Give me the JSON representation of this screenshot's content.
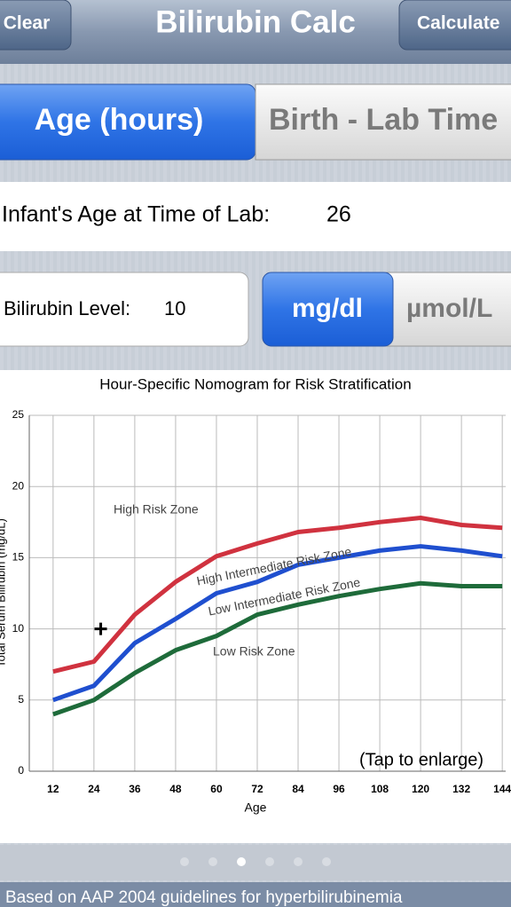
{
  "header": {
    "left_button": "Clear",
    "title": "Bilirubin Calc",
    "right_button": "Calculate"
  },
  "tabs": [
    "Age (hours)",
    "Birth - Lab Time"
  ],
  "age_field": {
    "label": "Infant's Age at Time of Lab:",
    "value": 26
  },
  "bilirubin_field": {
    "label": "Bilirubin Level:",
    "value": 10
  },
  "units": [
    "mg/dl",
    "µmol/L"
  ],
  "chart_data": {
    "type": "line",
    "title": "Hour-Specific Nomogram for Risk Stratification",
    "x_label": "Age",
    "y_label": "Total Serum Bilirubin (mg/dL)",
    "x": [
      12,
      24,
      36,
      48,
      60,
      72,
      84,
      96,
      108,
      120,
      132,
      144
    ],
    "series": [
      {
        "color": "#d0323f",
        "values": [
          7.0,
          7.7,
          11.0,
          13.3,
          15.1,
          16.0,
          16.8,
          17.1,
          17.5,
          17.8,
          17.3,
          17.1
        ]
      },
      {
        "color": "#1f4fcf",
        "values": [
          5.0,
          6.0,
          9.0,
          10.7,
          12.5,
          13.3,
          14.5,
          15.0,
          15.5,
          15.8,
          15.5,
          15.1
        ]
      },
      {
        "color": "#1e6b3a",
        "values": [
          4.0,
          5.0,
          6.9,
          8.5,
          9.5,
          11.0,
          11.7,
          12.3,
          12.8,
          13.2,
          13.0,
          13.0
        ]
      }
    ],
    "point": {
      "x": 26,
      "y": 10
    },
    "annotations": [
      "High Risk Zone",
      "High Intermediate Risk Zone",
      "Low Intermediate Risk Zone",
      "Low Risk Zone",
      "(Tap to enlarge)"
    ],
    "xlim": [
      5,
      145
    ],
    "ylim": [
      0,
      25
    ],
    "xticks": [
      12,
      24,
      36,
      48,
      60,
      72,
      84,
      96,
      108,
      120,
      132,
      144
    ],
    "yticks": [
      0,
      5,
      10,
      15,
      20,
      25
    ],
    "grid": true
  },
  "footer": "Based on AAP 2004 guidelines for hyperbilirubinemia"
}
